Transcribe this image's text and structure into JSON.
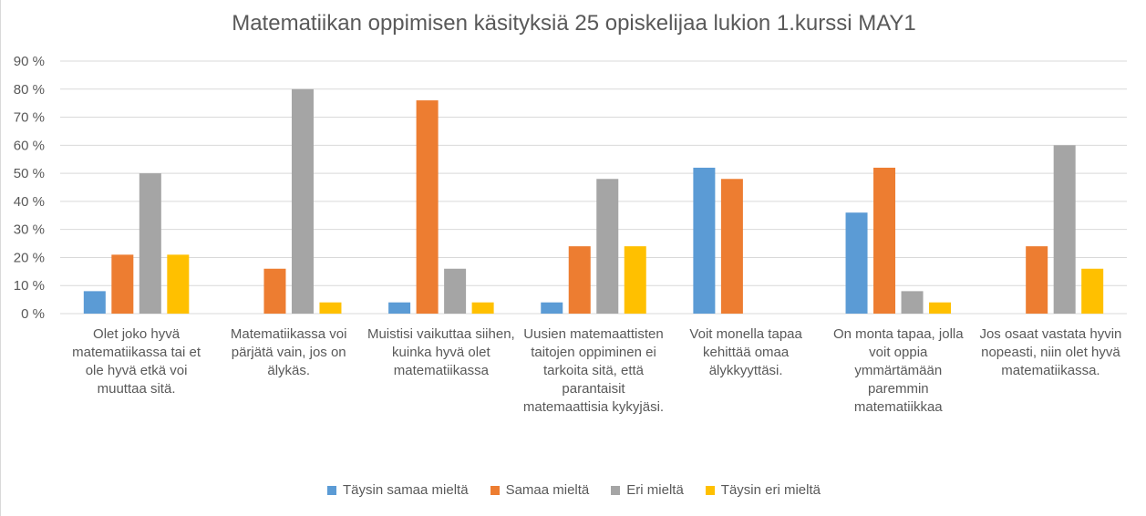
{
  "chart_data": {
    "type": "bar",
    "title": "Matematiikan oppimisen käsityksiä  25 opiskelijaa lukion 1.kurssi MAY1",
    "xlabel": "",
    "ylabel": "",
    "ylim": [
      0,
      90
    ],
    "yticks": [
      "0 %",
      "10 %",
      "20 %",
      "30 %",
      "40 %",
      "50 %",
      "60 %",
      "70 %",
      "80 %",
      "90 %"
    ],
    "grid": true,
    "legend_position": "bottom",
    "categories": [
      "Olet joko hyvä matematiikassa tai et ole hyvä etkä voi muuttaa sitä.",
      "Matematiikassa voi pärjätä vain, jos on älykäs.",
      "Muistisi vaikuttaa siihen, kuinka hyvä olet matematiikassa",
      "Uusien matemaattisten taitojen oppiminen ei tarkoita sitä, että parantaisit matemaattisia kykyjäsi.",
      "Voit monella tapaa kehittää omaa älykkyyttäsi.",
      "On monta tapaa, jolla voit oppia ymmärtämään paremmin matematiikkaa",
      "Jos osaat vastata hyvin nopeasti, niin olet hyvä matematiikassa."
    ],
    "series": [
      {
        "name": "Täysin samaa mieltä",
        "color": "#5b9bd5",
        "values": [
          8,
          0,
          4,
          4,
          52,
          36,
          0
        ]
      },
      {
        "name": "Samaa mieltä",
        "color": "#ed7d31",
        "values": [
          21,
          16,
          76,
          24,
          48,
          52,
          24
        ]
      },
      {
        "name": "Eri mieltä",
        "color": "#a5a5a5",
        "values": [
          50,
          80,
          16,
          48,
          0,
          8,
          60
        ]
      },
      {
        "name": "Täysin eri mieltä",
        "color": "#ffc000",
        "values": [
          21,
          4,
          4,
          24,
          0,
          4,
          16
        ]
      }
    ]
  }
}
